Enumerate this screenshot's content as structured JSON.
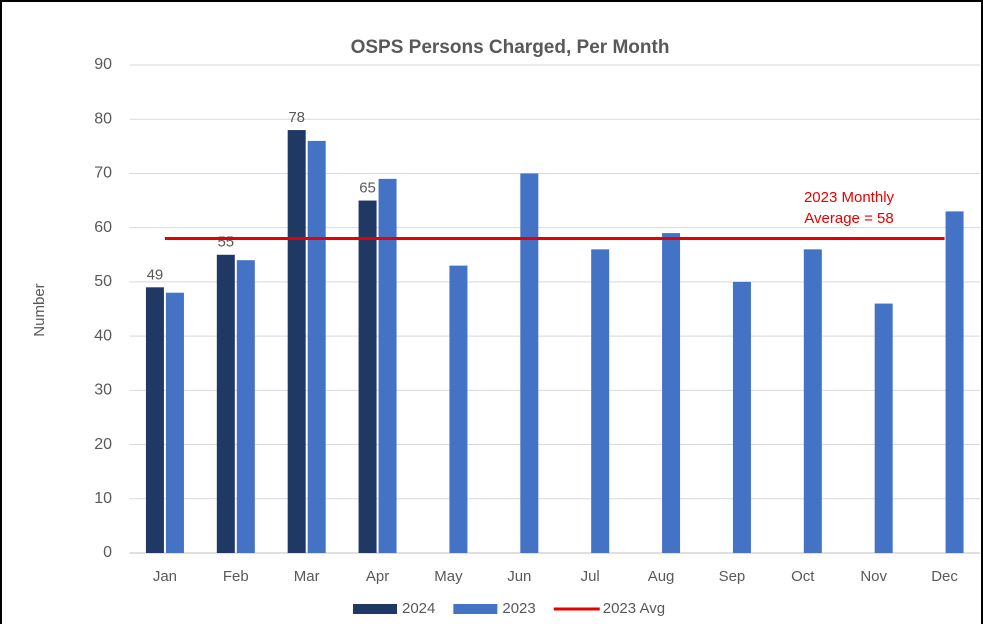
{
  "chart_data": {
    "type": "bar",
    "title": "OSPS Persons Charged, Per Month",
    "y_label": "Number",
    "categories": [
      "Jan",
      "Feb",
      "Mar",
      "Apr",
      "May",
      "Jun",
      "Jul",
      "Aug",
      "Sep",
      "Oct",
      "Nov",
      "Dec"
    ],
    "series": [
      {
        "name": "2024",
        "color": "#203864",
        "values": [
          49,
          55,
          78,
          65,
          null,
          null,
          null,
          null,
          null,
          null,
          null,
          null
        ],
        "data_labels": true
      },
      {
        "name": "2023",
        "color": "#4472c4",
        "values": [
          48,
          54,
          76,
          69,
          53,
          70,
          56,
          59,
          50,
          56,
          46,
          63
        ]
      },
      {
        "name": "2023 Avg",
        "type": "line",
        "color": "#e60000",
        "values": [
          58,
          58,
          58,
          58,
          58,
          58,
          58,
          58,
          58,
          58,
          58,
          58
        ]
      }
    ],
    "annotation": [
      "2023 Monthly",
      "Average = 58"
    ],
    "ylim": [
      0,
      90
    ],
    "yticks": [
      0,
      10,
      20,
      30,
      40,
      50,
      60,
      70,
      80,
      90
    ],
    "grid": true,
    "legend": "bottom"
  }
}
